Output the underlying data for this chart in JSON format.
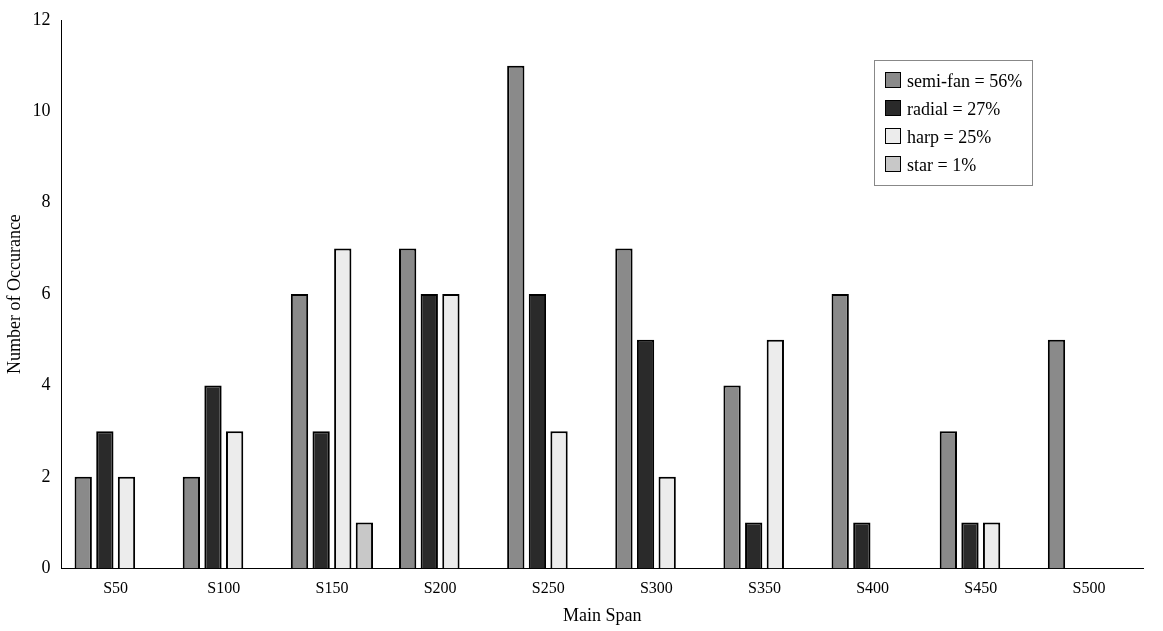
{
  "chart_data": {
    "type": "bar",
    "xlabel": "Main Span",
    "ylabel": "Number of Occurance",
    "categories": [
      "S50",
      "S100",
      "S150",
      "S200",
      "S250",
      "S300",
      "S350",
      "S400",
      "S450",
      "S500"
    ],
    "series": [
      {
        "name": "semi-fan = 56%",
        "color": "#8a8a8a",
        "values": [
          2,
          2,
          6,
          7,
          11,
          7,
          4,
          6,
          3,
          5
        ]
      },
      {
        "name": "radial = 27%",
        "color": "#2a2a2a",
        "values": [
          3,
          4,
          3,
          6,
          6,
          5,
          1,
          1,
          1,
          null
        ]
      },
      {
        "name": "harp = 25%",
        "color": "#ececec",
        "values": [
          2,
          3,
          7,
          6,
          3,
          2,
          5,
          null,
          1,
          null
        ]
      },
      {
        "name": "star = 1%",
        "color": "#c8c8c8",
        "values": [
          null,
          null,
          1,
          null,
          null,
          null,
          null,
          null,
          null,
          null
        ]
      }
    ],
    "ylim": [
      0,
      12
    ],
    "yticks": [
      0,
      2,
      4,
      6,
      8,
      10,
      12
    ],
    "grid": false,
    "legend": "top right"
  }
}
